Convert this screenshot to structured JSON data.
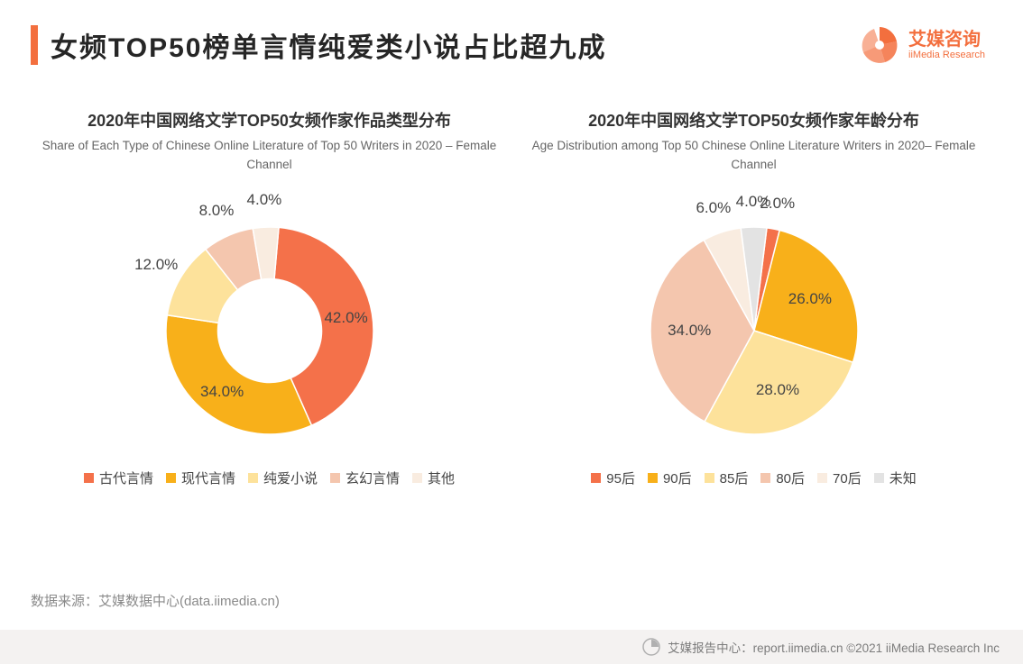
{
  "page": {
    "title": "女频TOP50榜单言情纯爱类小说占比超九成",
    "brand_cn": "艾媒咨询",
    "brand_en": "iiMedia Research",
    "accent_color": "#f36f3e",
    "source": "数据来源：艾媒数据中心(data.iimedia.cn)",
    "footer": "艾媒报告中心：report.iimedia.cn    ©2021   iiMedia Research  Inc",
    "background": "#ffffff"
  },
  "chart_left": {
    "type": "donut",
    "title_cn": "2020年中国网络文学TOP50女频作家作品类型分布",
    "title_en": "Share of Each Type of Chinese Online Literature of Top 50 Writers in 2020 – Female Channel",
    "inner_radius_ratio": 0.5,
    "start_angle_deg": 5,
    "label_fontsize": 17,
    "label_color": "#444444",
    "title_cn_fontsize": 18,
    "title_en_fontsize": 13.5,
    "slices": [
      {
        "label": "古代言情",
        "value": 42.0,
        "color": "#f4714a",
        "display": "42.0%"
      },
      {
        "label": "现代言情",
        "value": 34.0,
        "color": "#f8b01a",
        "display": "34.0%"
      },
      {
        "label": "纯爱小说",
        "value": 12.0,
        "color": "#fde29b",
        "display": "12.0%"
      },
      {
        "label": "玄幻言情",
        "value": 8.0,
        "color": "#f4c6ae",
        "display": "8.0%"
      },
      {
        "label": "其他",
        "value": 4.0,
        "color": "#f9ece0",
        "display": "4.0%"
      }
    ]
  },
  "chart_right": {
    "type": "pie",
    "title_cn": "2020年中国网络文学TOP50女频作家年龄分布",
    "title_en": "Age Distribution among Top 50 Chinese Online Literature Writers in 2020– Female  Channel",
    "inner_radius_ratio": 0.0,
    "start_angle_deg": 7,
    "label_fontsize": 17,
    "label_color": "#444444",
    "title_cn_fontsize": 18,
    "title_en_fontsize": 13.5,
    "slices": [
      {
        "label": "95后",
        "value": 2.0,
        "color": "#f4714a",
        "display": "2.0%"
      },
      {
        "label": "90后",
        "value": 26.0,
        "color": "#f8b01a",
        "display": "26.0%"
      },
      {
        "label": "85后",
        "value": 28.0,
        "color": "#fde29b",
        "display": "28.0%"
      },
      {
        "label": "80后",
        "value": 34.0,
        "color": "#f4c6ae",
        "display": "34.0%"
      },
      {
        "label": "70后",
        "value": 6.0,
        "color": "#f9ece0",
        "display": "6.0%"
      },
      {
        "label": "未知",
        "value": 4.0,
        "color": "#e3e3e3",
        "display": "4.0%"
      }
    ]
  }
}
